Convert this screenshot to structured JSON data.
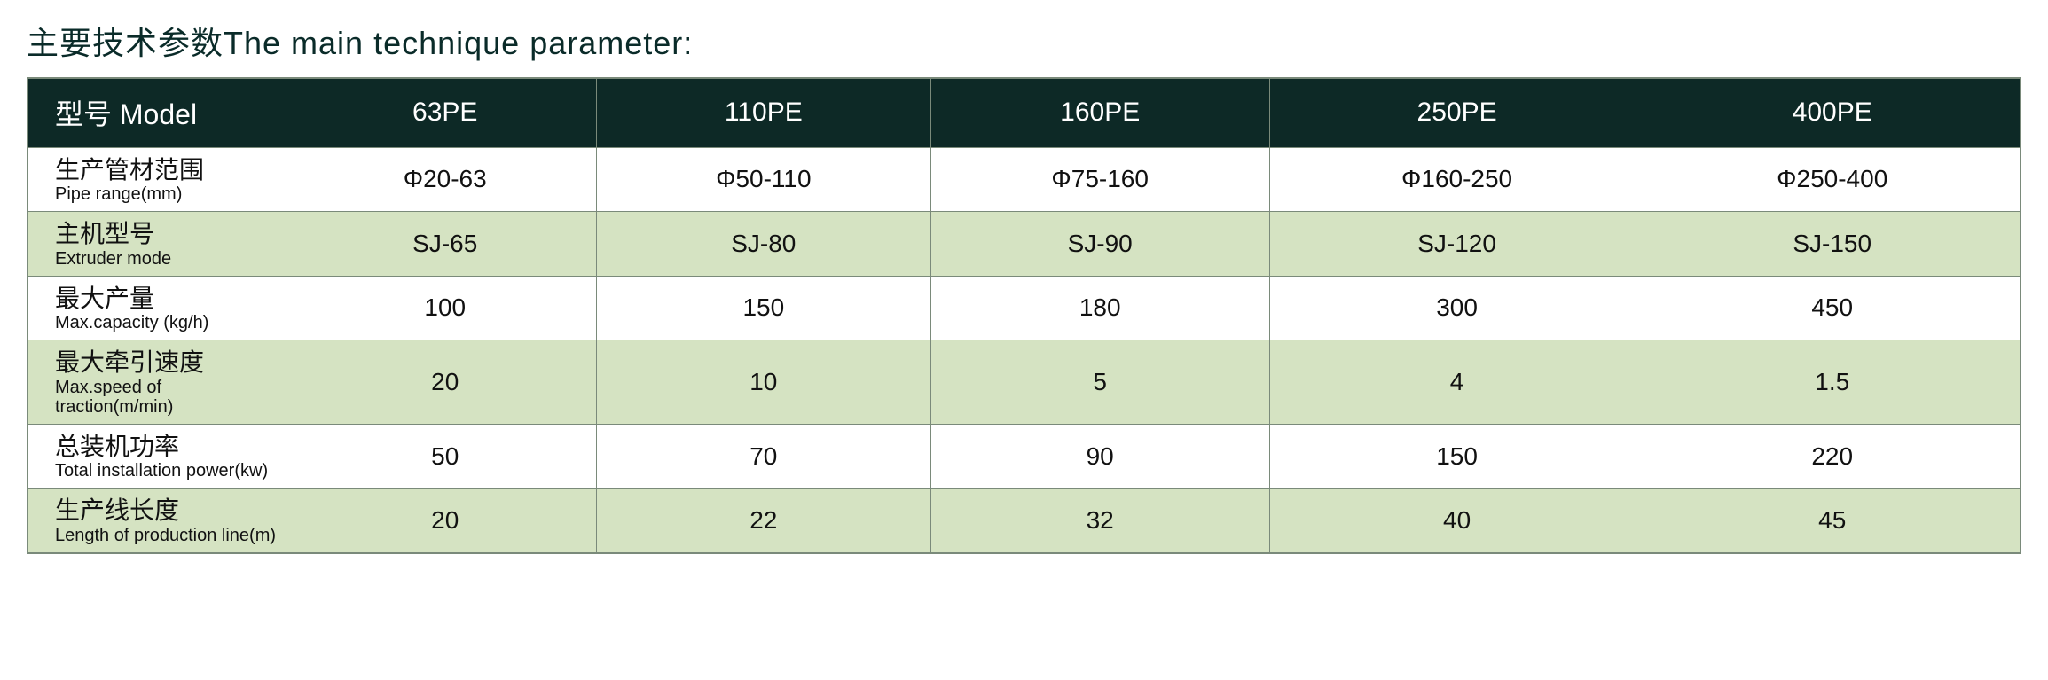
{
  "title": "主要技术参数The main technique parameter:",
  "colors": {
    "header_bg": "#0d2926",
    "header_text": "#ffffff",
    "row_alt_bg": "#d5e3c2",
    "row_plain_bg": "#ffffff",
    "border": "#7a8a7a",
    "title_color": "#0a2b29"
  },
  "table": {
    "header": {
      "label": "型号 Model",
      "cols": [
        "63PE",
        "110PE",
        "160PE",
        "250PE",
        "400PE"
      ]
    },
    "rows": [
      {
        "cn": "生产管材范围",
        "en": "Pipe range(mm)",
        "alt": false,
        "vals": [
          "Φ20-63",
          "Φ50-110",
          "Φ75-160",
          "Φ160-250",
          "Φ250-400"
        ]
      },
      {
        "cn": "主机型号",
        "en": "Extruder mode",
        "alt": true,
        "vals": [
          "SJ-65",
          "SJ-80",
          "SJ-90",
          "SJ-120",
          "SJ-150"
        ]
      },
      {
        "cn": "最大产量",
        "en": "Max.capacity (kg/h)",
        "alt": false,
        "vals": [
          "100",
          "150",
          "180",
          "300",
          "450"
        ]
      },
      {
        "cn": "最大牵引速度",
        "en": "Max.speed of traction(m/min)",
        "alt": true,
        "vals": [
          "20",
          "10",
          "5",
          "4",
          "1.5"
        ]
      },
      {
        "cn": "总装机功率",
        "en": "Total installation power(kw)",
        "alt": false,
        "vals": [
          "50",
          "70",
          "90",
          "150",
          "220"
        ]
      },
      {
        "cn": "生产线长度",
        "en": "Length of production line(m)",
        "alt": true,
        "vals": [
          "20",
          "22",
          "32",
          "40",
          "45"
        ]
      }
    ]
  }
}
